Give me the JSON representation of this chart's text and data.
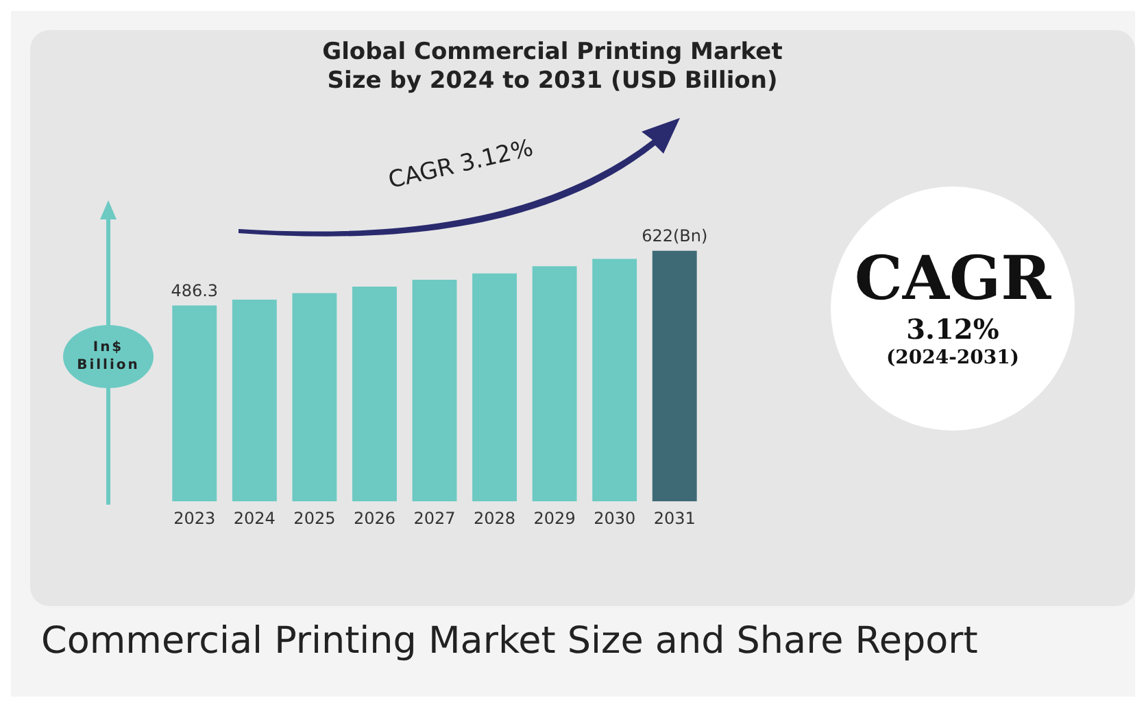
{
  "chart_data": {
    "type": "bar",
    "title": "Global Commercial Printing Market\nSize by 2024 to 2031 (USD Billion)",
    "ylabel": "In$ Billion",
    "categories": [
      "2023",
      "2024",
      "2025",
      "2026",
      "2027",
      "2028",
      "2029",
      "2030",
      "2031"
    ],
    "values": [
      486.3,
      501,
      517,
      533,
      550,
      566,
      584,
      602,
      622
    ],
    "colors": [
      "#6ccac3",
      "#6ccac3",
      "#6ccac3",
      "#6ccac3",
      "#6ccac3",
      "#6ccac3",
      "#6ccac3",
      "#6ccac3",
      "#3e6a75"
    ],
    "value_labels": [
      "486.3",
      null,
      null,
      null,
      null,
      null,
      null,
      null,
      "622(Bn)"
    ],
    "annotations": [
      "CAGR 3.12%",
      "CAGR",
      "3.12%",
      "(2024-2031)",
      "Commercial Printing Market Size and Share Report"
    ],
    "grid": false,
    "legend": false
  }
}
